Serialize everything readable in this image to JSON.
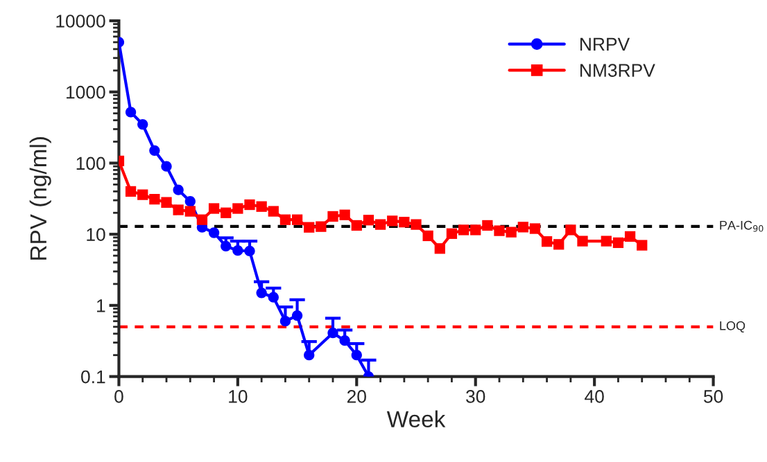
{
  "chart_data": {
    "type": "line",
    "xlabel": "Week",
    "ylabel": "RPV (ng/ml)",
    "log": "y",
    "xlim": [
      0,
      50
    ],
    "xticks": [
      0,
      10,
      20,
      30,
      40,
      50
    ],
    "ylim": [
      0.1,
      10000
    ],
    "yticks": [
      0.1,
      1,
      10,
      100,
      1000,
      10000
    ],
    "legend": "top right",
    "grid": false,
    "line_style": "solid",
    "series": [
      {
        "name": "NRPV",
        "color": "#0000ff",
        "marker": "circle",
        "x": [
          0,
          1,
          2,
          3,
          4,
          5,
          6,
          7,
          8,
          9,
          10,
          11,
          12,
          13,
          14,
          15,
          16,
          18,
          19,
          20,
          21
        ],
        "values": [
          5000,
          520,
          350,
          150,
          90,
          42,
          29,
          12.5,
          10.5,
          6.8,
          5.9,
          5.8,
          1.5,
          1.3,
          0.6,
          0.72,
          0.2,
          0.41,
          0.32,
          0.2,
          0.1
        ],
        "errors": [
          null,
          null,
          null,
          null,
          null,
          null,
          null,
          null,
          null,
          [
            6.8,
            8.9
          ],
          [
            5.9,
            8
          ],
          [
            5.8,
            8
          ],
          [
            1.5,
            2.15
          ],
          [
            1.3,
            1.75
          ],
          [
            0.6,
            0.95
          ],
          [
            0.72,
            1.2
          ],
          [
            0.2,
            0.31
          ],
          [
            0.41,
            0.66
          ],
          [
            0.32,
            0.45
          ],
          [
            0.2,
            0.29
          ],
          [
            0.1,
            0.17
          ]
        ]
      },
      {
        "name": "NM3RPV",
        "color": "#ff0000",
        "marker": "square",
        "x": [
          0,
          1,
          2,
          3,
          4,
          5,
          6,
          7,
          8,
          9,
          10,
          11,
          12,
          13,
          14,
          15,
          16,
          17,
          18,
          19,
          20,
          21,
          22,
          23,
          24,
          25,
          26,
          27,
          28,
          29,
          30,
          31,
          32,
          33,
          34,
          35,
          36,
          37,
          38,
          39,
          41,
          42,
          43,
          44
        ],
        "values": [
          107,
          40,
          36,
          31,
          28,
          22,
          21,
          16,
          23,
          20,
          23,
          26,
          24.5,
          21,
          16,
          16,
          12.5,
          12.8,
          17.8,
          18.7,
          13.3,
          15.8,
          13.7,
          15.4,
          14.8,
          13.7,
          9.5,
          6.3,
          10.2,
          11.5,
          11.5,
          13.3,
          11.2,
          10.7,
          12.6,
          12,
          7.9,
          7.2,
          11.5,
          8,
          8,
          7.6,
          9.3,
          7
        ]
      }
    ],
    "ref_lines": [
      {
        "axis": "y",
        "value": 12.9,
        "label": "PA-IC$_{90}$",
        "color": "#000000",
        "line_style": "dashed"
      },
      {
        "axis": "y",
        "value": 0.5,
        "label": "LOQ",
        "color": "#ff0000",
        "line_style": "dashed"
      }
    ]
  }
}
